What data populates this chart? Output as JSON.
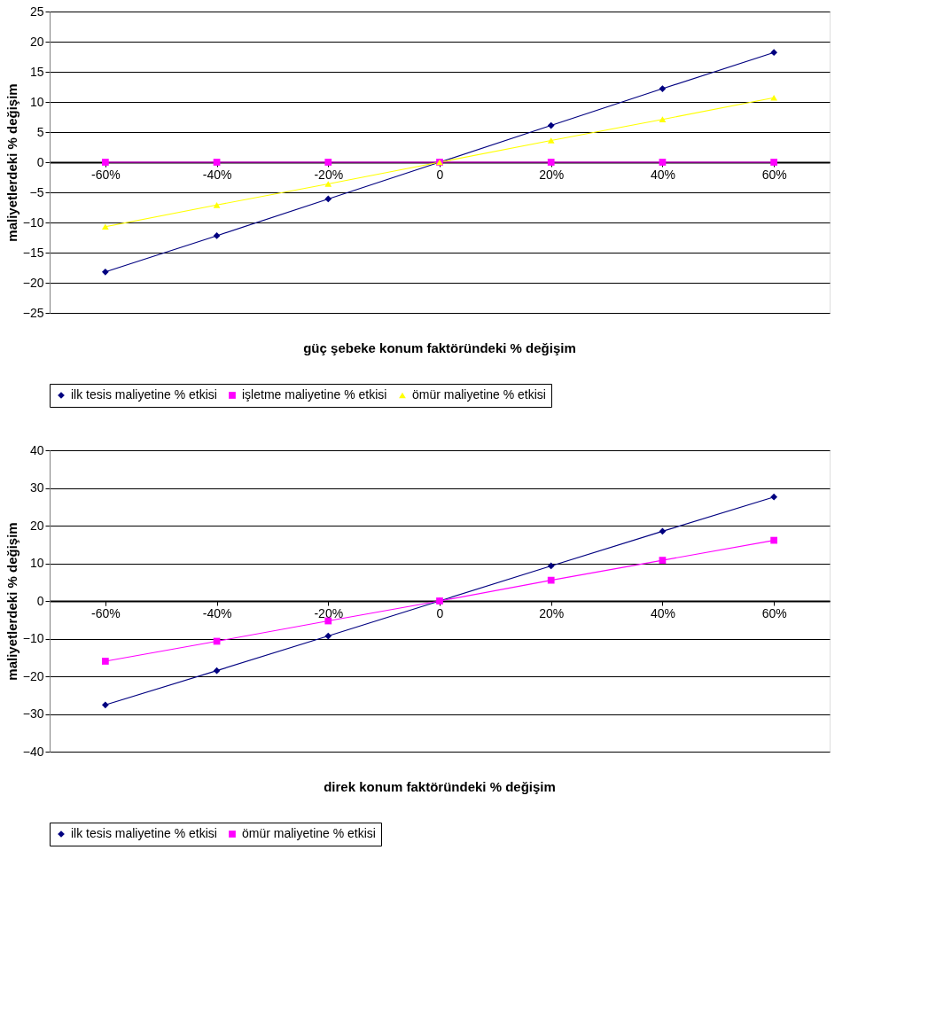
{
  "chart_data": [
    {
      "type": "line",
      "xlabel": "güç şebeke konum faktöründeki % değişim",
      "ylabel": "maliyetlerdeki %  değişim",
      "categories": [
        "-60%",
        "-40%",
        "-20%",
        "0",
        "20%",
        "40%",
        "60%"
      ],
      "series": [
        {
          "name": "ilk tesis maliyetine % etkisi",
          "color": "#000080",
          "marker": "diamond",
          "values": [
            -18.2,
            -12.2,
            -6.1,
            0,
            6.1,
            12.2,
            18.2
          ]
        },
        {
          "name": "işletme maliyetine % etkisi",
          "color": "#ff00ff",
          "marker": "square",
          "values": [
            0,
            0,
            0,
            0,
            0,
            0,
            0
          ]
        },
        {
          "name": "ömür maliyetine % etkisi",
          "color": "#ffff00",
          "marker": "triangle",
          "values": [
            -10.7,
            -7.1,
            -3.6,
            0,
            3.6,
            7.1,
            10.7
          ]
        }
      ],
      "ylim": [
        -25,
        25
      ],
      "yticks": [
        -25,
        -20,
        -15,
        -10,
        -5,
        0,
        5,
        10,
        15,
        20,
        25
      ],
      "grid": "y",
      "legend": "bottom"
    },
    {
      "type": "line",
      "xlabel": "direk konum faktöründeki % değişim",
      "ylabel": "maliyetlerdeki %  değişim",
      "categories": [
        "-60%",
        "-40%",
        "-20%",
        "0",
        "20%",
        "40%",
        "60%"
      ],
      "series": [
        {
          "name": "ilk tesis maliyetine % etkisi",
          "color": "#000080",
          "marker": "diamond",
          "values": [
            -27.6,
            -18.5,
            -9.3,
            0,
            9.3,
            18.5,
            27.6
          ]
        },
        {
          "name": "ömür maliyetine % etkisi",
          "color": "#ff00ff",
          "marker": "square",
          "values": [
            -16,
            -10.7,
            -5.3,
            0,
            5.5,
            10.8,
            16.1
          ]
        }
      ],
      "ylim": [
        -40,
        40
      ],
      "yticks": [
        -40,
        -30,
        -20,
        -10,
        0,
        10,
        20,
        30,
        40
      ],
      "grid": "y",
      "legend": "bottom"
    }
  ]
}
